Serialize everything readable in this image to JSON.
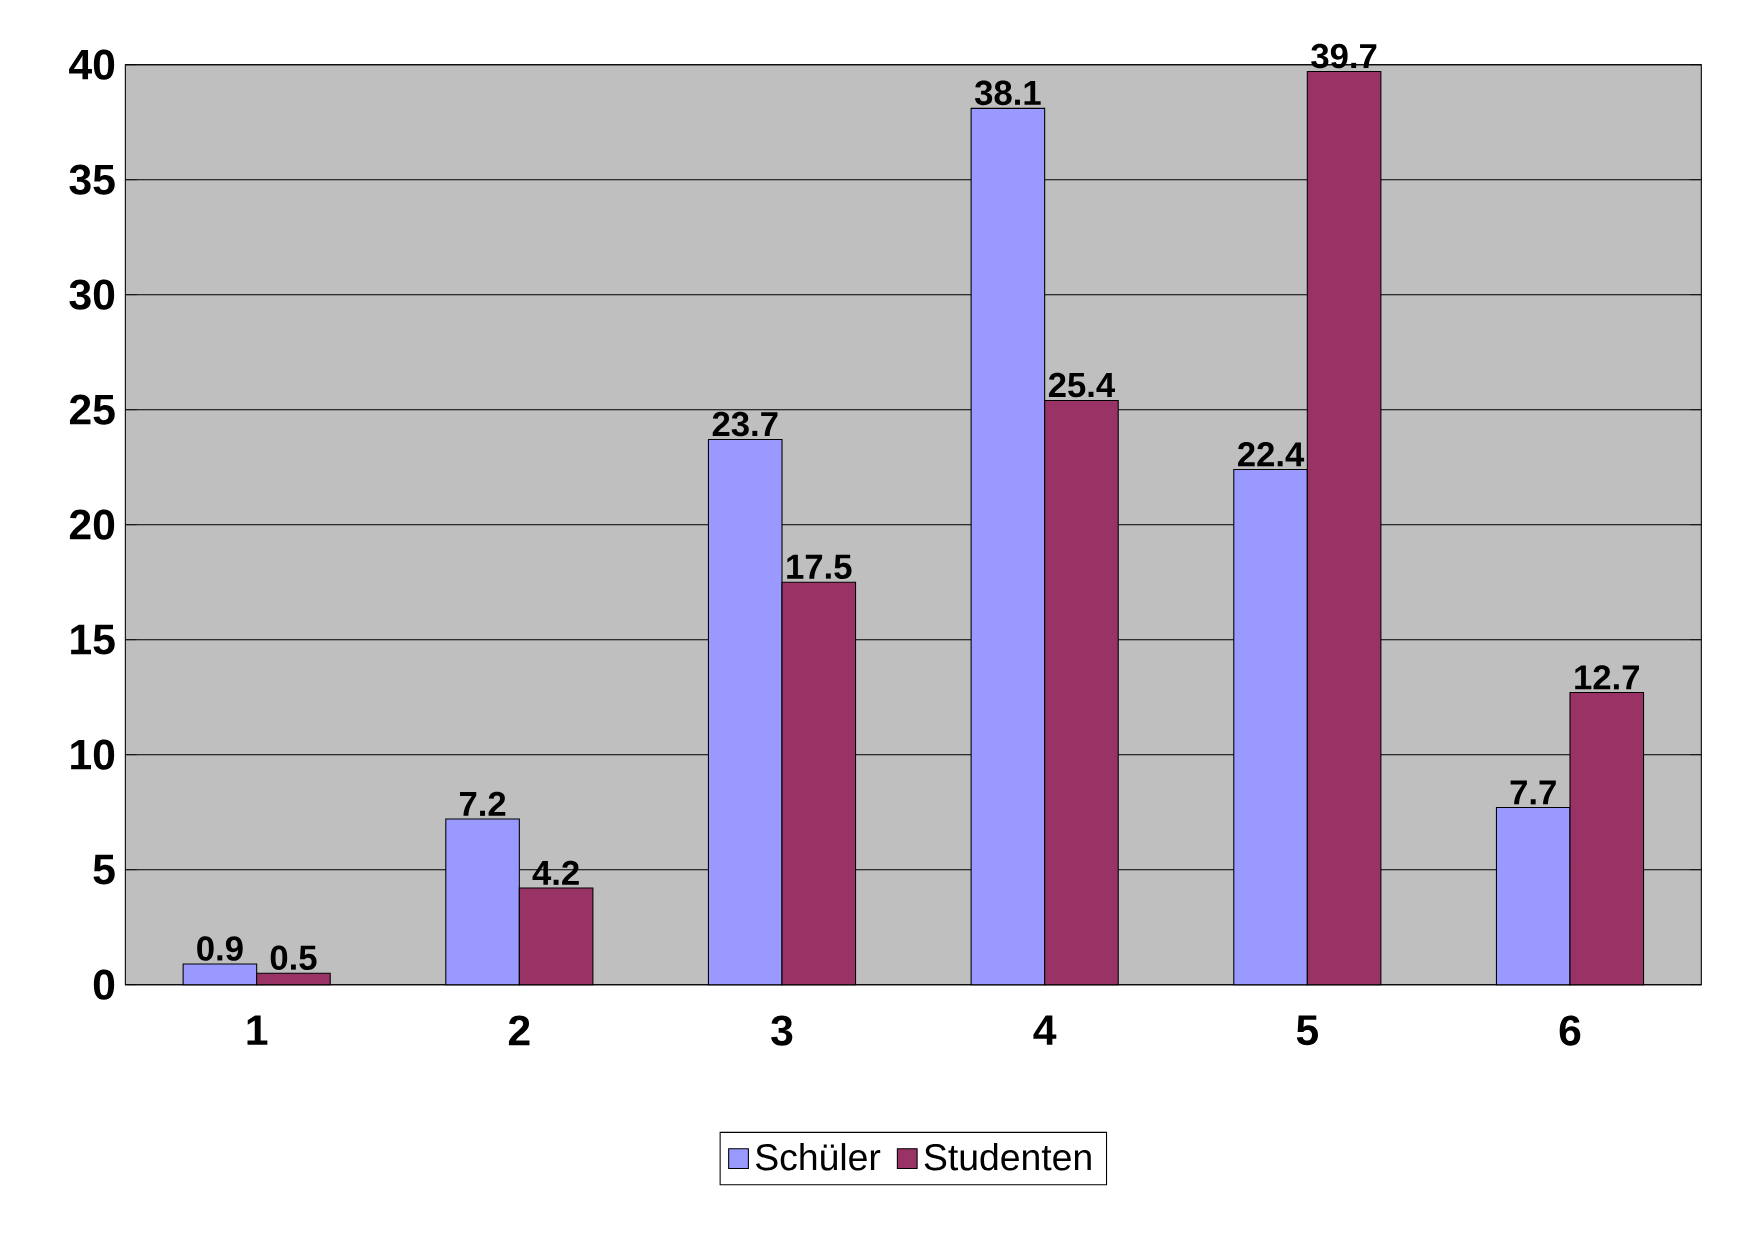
{
  "chart_data": {
    "type": "bar",
    "categories": [
      "1",
      "2",
      "3",
      "4",
      "5",
      "6"
    ],
    "series": [
      {
        "name": "Schüler",
        "color": "#9999ff",
        "values": [
          0.9,
          7.2,
          23.7,
          38.1,
          22.4,
          7.7
        ],
        "value_labels": [
          "0.9",
          "7.2",
          "23.7",
          "38.1",
          "22.4",
          "7.7"
        ]
      },
      {
        "name": "Studenten",
        "color": "#993366",
        "values": [
          0.5,
          4.2,
          17.5,
          25.4,
          39.7,
          12.7
        ],
        "value_labels": [
          "0.5",
          "4.2",
          "17.5",
          "25.4",
          "39.7",
          "12.7"
        ]
      }
    ],
    "ylim": [
      0,
      40
    ],
    "yticks": [
      0,
      5,
      10,
      15,
      20,
      25,
      30,
      35,
      40
    ],
    "grid": "y",
    "legend": "bottom"
  }
}
